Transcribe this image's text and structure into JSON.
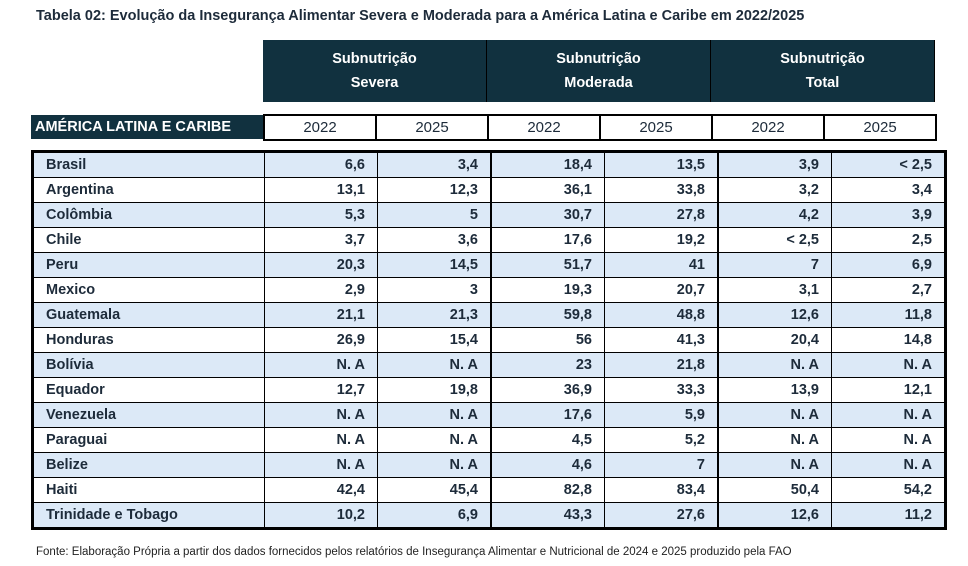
{
  "title": "Tabela 02: Evolução da Insegurança Alimentar Severa e Moderada para a América Latina e Caribe em 2022/2025",
  "groups": [
    "Subnutrição\nSevera",
    "Subnutrição\nModerada",
    "Subnutrição\nTotal"
  ],
  "region_label": "AMÉRICA LATINA E CARIBE",
  "years": [
    "2022",
    "2025",
    "2022",
    "2025",
    "2022",
    "2025"
  ],
  "rows": [
    [
      "Brasil",
      "6,6",
      "3,4",
      "18,4",
      "13,5",
      "3,9",
      "< 2,5"
    ],
    [
      "Argentina",
      "13,1",
      "12,3",
      "36,1",
      "33,8",
      "3,2",
      "3,4"
    ],
    [
      "Colômbia",
      "5,3",
      "5",
      "30,7",
      "27,8",
      "4,2",
      "3,9"
    ],
    [
      "Chile",
      "3,7",
      "3,6",
      "17,6",
      "19,2",
      "< 2,5",
      "2,5"
    ],
    [
      "Peru",
      "20,3",
      "14,5",
      "51,7",
      "41",
      "7",
      "6,9"
    ],
    [
      "Mexico",
      "2,9",
      "3",
      "19,3",
      "20,7",
      "3,1",
      "2,7"
    ],
    [
      "Guatemala",
      "21,1",
      "21,3",
      "59,8",
      "48,8",
      "12,6",
      "11,8"
    ],
    [
      "Honduras",
      "26,9",
      "15,4",
      "56",
      "41,3",
      "20,4",
      "14,8"
    ],
    [
      "Bolívia",
      "N. A",
      "N. A",
      "23",
      "21,8",
      "N. A",
      "N. A"
    ],
    [
      "Equador",
      "12,7",
      "19,8",
      "36,9",
      "33,3",
      "13,9",
      "12,1"
    ],
    [
      "Venezuela",
      "N. A",
      "N. A",
      "17,6",
      "5,9",
      "N. A",
      "N. A"
    ],
    [
      "Paraguai",
      "N. A",
      "N. A",
      "4,5",
      "5,2",
      "N. A",
      "N. A"
    ],
    [
      "Belize",
      "N. A",
      "N. A",
      "4,6",
      "7",
      "N. A",
      "N. A"
    ],
    [
      "Haiti",
      "42,4",
      "45,4",
      "82,8",
      "83,4",
      "50,4",
      "54,2"
    ],
    [
      "Trinidade e Tobago",
      "10,2",
      "6,9",
      "43,3",
      "27,6",
      "12,6",
      "11,2"
    ]
  ],
  "source": "Fonte: Elaboração Própria a partir dos dados fornecidos pelos relatórios de Insegurança Alimentar e Nutricional de 2024 e 2025 produzido pela FAO",
  "colors": {
    "header": "#11313f",
    "alt_row": "#dce9f7"
  }
}
